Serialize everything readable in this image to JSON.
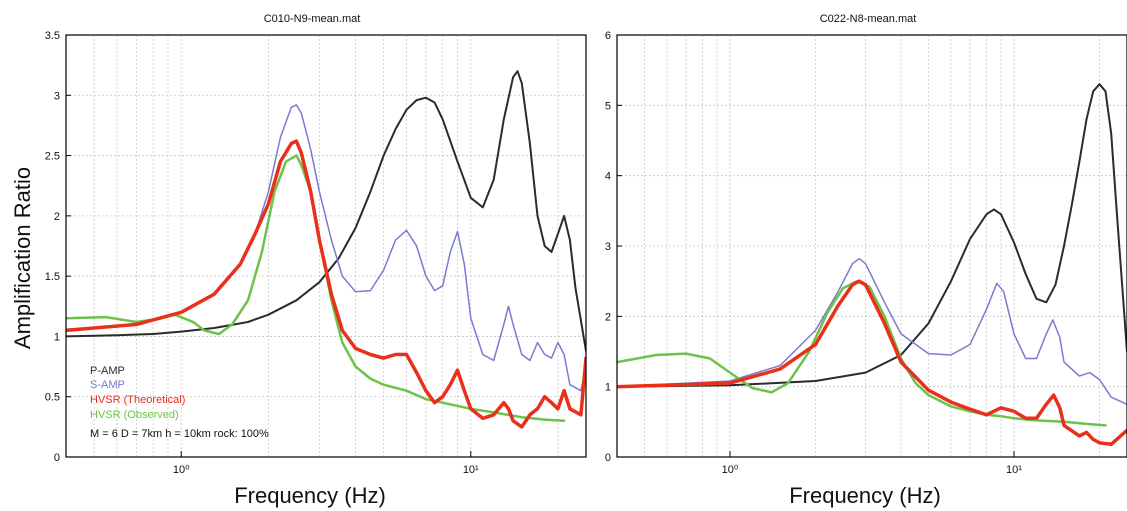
{
  "ylabel": "Amplification Ratio",
  "colors": {
    "P-AMP": "#2b2b2b",
    "S-AMP": "#7a7ad0",
    "HVSR (Theoretical)": "#e8301c",
    "HVSR (Observed)": "#6cc24a"
  },
  "chart_data": [
    {
      "type": "line",
      "title": "C010-N9-mean.mat",
      "xlabel": "Frequency (Hz)",
      "x_scale": "log",
      "xlim": [
        0.4,
        25
      ],
      "ylim": [
        0,
        3.5
      ],
      "yticks": [
        "0",
        "0.5",
        "1",
        "1.5",
        "2",
        "2.5",
        "3",
        "3.5"
      ],
      "xticks": [
        {
          "value": 1,
          "label": "10⁰"
        },
        {
          "value": 10,
          "label": "10¹"
        }
      ],
      "grid": true,
      "legend": "bottom-left",
      "annotation": "M = 6  D = 7km  h = 10km  rock: 100%",
      "series": [
        {
          "name": "P-AMP",
          "points": [
            [
              0.4,
              1.0
            ],
            [
              0.6,
              1.01
            ],
            [
              0.8,
              1.02
            ],
            [
              1.0,
              1.04
            ],
            [
              1.3,
              1.07
            ],
            [
              1.7,
              1.12
            ],
            [
              2.0,
              1.18
            ],
            [
              2.5,
              1.3
            ],
            [
              3.0,
              1.45
            ],
            [
              3.5,
              1.65
            ],
            [
              4.0,
              1.9
            ],
            [
              4.5,
              2.2
            ],
            [
              5.0,
              2.5
            ],
            [
              5.5,
              2.72
            ],
            [
              6.0,
              2.88
            ],
            [
              6.5,
              2.96
            ],
            [
              7.0,
              2.98
            ],
            [
              7.5,
              2.94
            ],
            [
              8.0,
              2.8
            ],
            [
              9.0,
              2.45
            ],
            [
              10.0,
              2.15
            ],
            [
              11.0,
              2.07
            ],
            [
              12.0,
              2.3
            ],
            [
              13.0,
              2.8
            ],
            [
              14.0,
              3.15
            ],
            [
              14.5,
              3.2
            ],
            [
              15.0,
              3.1
            ],
            [
              16.0,
              2.6
            ],
            [
              17.0,
              2.0
            ],
            [
              18.0,
              1.75
            ],
            [
              19.0,
              1.7
            ],
            [
              20.0,
              1.85
            ],
            [
              21.0,
              2.0
            ],
            [
              22.0,
              1.8
            ],
            [
              23.0,
              1.4
            ],
            [
              25.0,
              0.88
            ]
          ]
        },
        {
          "name": "S-AMP",
          "points": [
            [
              0.4,
              1.06
            ],
            [
              0.7,
              1.1
            ],
            [
              1.0,
              1.2
            ],
            [
              1.3,
              1.35
            ],
            [
              1.6,
              1.6
            ],
            [
              1.8,
              1.85
            ],
            [
              2.0,
              2.2
            ],
            [
              2.2,
              2.65
            ],
            [
              2.4,
              2.9
            ],
            [
              2.5,
              2.92
            ],
            [
              2.6,
              2.85
            ],
            [
              2.8,
              2.55
            ],
            [
              3.0,
              2.2
            ],
            [
              3.3,
              1.8
            ],
            [
              3.6,
              1.5
            ],
            [
              4.0,
              1.37
            ],
            [
              4.5,
              1.38
            ],
            [
              5.0,
              1.55
            ],
            [
              5.5,
              1.8
            ],
            [
              6.0,
              1.88
            ],
            [
              6.5,
              1.75
            ],
            [
              7.0,
              1.5
            ],
            [
              7.5,
              1.38
            ],
            [
              8.0,
              1.42
            ],
            [
              8.5,
              1.7
            ],
            [
              9.0,
              1.87
            ],
            [
              9.5,
              1.6
            ],
            [
              10.0,
              1.15
            ],
            [
              11.0,
              0.85
            ],
            [
              12.0,
              0.8
            ],
            [
              13.0,
              1.1
            ],
            [
              13.5,
              1.25
            ],
            [
              14.0,
              1.1
            ],
            [
              15.0,
              0.85
            ],
            [
              16.0,
              0.8
            ],
            [
              17.0,
              0.95
            ],
            [
              18.0,
              0.85
            ],
            [
              19.0,
              0.82
            ],
            [
              20.0,
              0.95
            ],
            [
              21.0,
              0.85
            ],
            [
              22.0,
              0.6
            ],
            [
              24.0,
              0.55
            ],
            [
              25.0,
              0.75
            ]
          ]
        },
        {
          "name": "HVSR (Theoretical)",
          "points": [
            [
              0.4,
              1.05
            ],
            [
              0.7,
              1.1
            ],
            [
              1.0,
              1.2
            ],
            [
              1.3,
              1.35
            ],
            [
              1.6,
              1.6
            ],
            [
              1.8,
              1.85
            ],
            [
              2.0,
              2.1
            ],
            [
              2.2,
              2.45
            ],
            [
              2.4,
              2.6
            ],
            [
              2.5,
              2.62
            ],
            [
              2.6,
              2.52
            ],
            [
              2.8,
              2.2
            ],
            [
              3.0,
              1.8
            ],
            [
              3.3,
              1.35
            ],
            [
              3.6,
              1.05
            ],
            [
              4.0,
              0.9
            ],
            [
              4.5,
              0.85
            ],
            [
              5.0,
              0.82
            ],
            [
              5.5,
              0.85
            ],
            [
              6.0,
              0.85
            ],
            [
              6.5,
              0.7
            ],
            [
              7.0,
              0.55
            ],
            [
              7.5,
              0.45
            ],
            [
              8.0,
              0.5
            ],
            [
              8.5,
              0.6
            ],
            [
              9.0,
              0.72
            ],
            [
              9.5,
              0.55
            ],
            [
              10.0,
              0.4
            ],
            [
              11.0,
              0.32
            ],
            [
              12.0,
              0.35
            ],
            [
              13.0,
              0.45
            ],
            [
              13.5,
              0.4
            ],
            [
              14.0,
              0.3
            ],
            [
              15.0,
              0.25
            ],
            [
              16.0,
              0.35
            ],
            [
              17.0,
              0.4
            ],
            [
              18.0,
              0.5
            ],
            [
              19.0,
              0.45
            ],
            [
              20.0,
              0.4
            ],
            [
              21.0,
              0.55
            ],
            [
              22.0,
              0.4
            ],
            [
              24.0,
              0.35
            ],
            [
              25.0,
              0.82
            ]
          ]
        },
        {
          "name": "HVSR (Observed)",
          "points": [
            [
              0.4,
              1.15
            ],
            [
              0.55,
              1.16
            ],
            [
              0.7,
              1.12
            ],
            [
              0.85,
              1.15
            ],
            [
              0.95,
              1.18
            ],
            [
              1.1,
              1.12
            ],
            [
              1.2,
              1.05
            ],
            [
              1.35,
              1.02
            ],
            [
              1.5,
              1.1
            ],
            [
              1.7,
              1.3
            ],
            [
              1.9,
              1.7
            ],
            [
              2.1,
              2.2
            ],
            [
              2.3,
              2.45
            ],
            [
              2.5,
              2.5
            ],
            [
              2.6,
              2.42
            ],
            [
              2.8,
              2.2
            ],
            [
              3.0,
              1.8
            ],
            [
              3.3,
              1.3
            ],
            [
              3.6,
              0.95
            ],
            [
              4.0,
              0.75
            ],
            [
              4.5,
              0.65
            ],
            [
              5.0,
              0.6
            ],
            [
              6.0,
              0.55
            ],
            [
              7.0,
              0.48
            ],
            [
              8.0,
              0.45
            ],
            [
              10.0,
              0.4
            ],
            [
              12.0,
              0.37
            ],
            [
              15.0,
              0.33
            ],
            [
              18.0,
              0.31
            ],
            [
              21.0,
              0.3
            ]
          ]
        }
      ]
    },
    {
      "type": "line",
      "title": "C022-N8-mean.mat",
      "xlabel": "Frequency (Hz)",
      "x_scale": "log",
      "xlim": [
        0.4,
        25
      ],
      "ylim": [
        0,
        6
      ],
      "yticks": [
        "0",
        "1",
        "2",
        "3",
        "4",
        "5",
        "6"
      ],
      "xticks": [
        {
          "value": 1,
          "label": "10⁰"
        },
        {
          "value": 10,
          "label": "10¹"
        }
      ],
      "grid": true,
      "series": [
        {
          "name": "P-AMP",
          "points": [
            [
              0.4,
              1.0
            ],
            [
              1.0,
              1.02
            ],
            [
              2.0,
              1.08
            ],
            [
              3.0,
              1.2
            ],
            [
              4.0,
              1.45
            ],
            [
              5.0,
              1.9
            ],
            [
              6.0,
              2.5
            ],
            [
              7.0,
              3.1
            ],
            [
              8.0,
              3.45
            ],
            [
              8.5,
              3.52
            ],
            [
              9.0,
              3.45
            ],
            [
              10.0,
              3.05
            ],
            [
              11.0,
              2.6
            ],
            [
              12.0,
              2.25
            ],
            [
              13.0,
              2.2
            ],
            [
              14.0,
              2.45
            ],
            [
              15.0,
              3.0
            ],
            [
              16.0,
              3.6
            ],
            [
              17.0,
              4.2
            ],
            [
              18.0,
              4.8
            ],
            [
              19.0,
              5.2
            ],
            [
              20.0,
              5.3
            ],
            [
              21.0,
              5.2
            ],
            [
              22.0,
              4.6
            ],
            [
              23.0,
              3.5
            ],
            [
              25.0,
              1.5
            ]
          ]
        },
        {
          "name": "S-AMP",
          "points": [
            [
              0.4,
              1.0
            ],
            [
              1.0,
              1.08
            ],
            [
              1.5,
              1.3
            ],
            [
              2.0,
              1.8
            ],
            [
              2.4,
              2.35
            ],
            [
              2.7,
              2.75
            ],
            [
              2.85,
              2.82
            ],
            [
              3.0,
              2.75
            ],
            [
              3.5,
              2.2
            ],
            [
              4.0,
              1.75
            ],
            [
              5.0,
              1.47
            ],
            [
              6.0,
              1.45
            ],
            [
              7.0,
              1.6
            ],
            [
              8.0,
              2.1
            ],
            [
              8.7,
              2.47
            ],
            [
              9.2,
              2.35
            ],
            [
              10.0,
              1.75
            ],
            [
              11.0,
              1.4
            ],
            [
              12.0,
              1.4
            ],
            [
              13.0,
              1.75
            ],
            [
              13.7,
              1.95
            ],
            [
              14.5,
              1.7
            ],
            [
              15.0,
              1.35
            ],
            [
              17.0,
              1.15
            ],
            [
              18.5,
              1.2
            ],
            [
              20.0,
              1.1
            ],
            [
              22.0,
              0.85
            ],
            [
              25.0,
              0.75
            ]
          ]
        },
        {
          "name": "HVSR (Theoretical)",
          "points": [
            [
              0.4,
              1.0
            ],
            [
              1.0,
              1.05
            ],
            [
              1.5,
              1.25
            ],
            [
              2.0,
              1.6
            ],
            [
              2.4,
              2.15
            ],
            [
              2.7,
              2.45
            ],
            [
              2.85,
              2.5
            ],
            [
              3.0,
              2.45
            ],
            [
              3.5,
              1.9
            ],
            [
              4.0,
              1.35
            ],
            [
              5.0,
              0.95
            ],
            [
              6.0,
              0.78
            ],
            [
              7.0,
              0.68
            ],
            [
              8.0,
              0.6
            ],
            [
              9.0,
              0.7
            ],
            [
              10.0,
              0.65
            ],
            [
              11.0,
              0.55
            ],
            [
              12.0,
              0.55
            ],
            [
              13.0,
              0.75
            ],
            [
              13.8,
              0.88
            ],
            [
              14.5,
              0.7
            ],
            [
              15.0,
              0.45
            ],
            [
              17.0,
              0.3
            ],
            [
              18.0,
              0.35
            ],
            [
              19.0,
              0.25
            ],
            [
              20.0,
              0.2
            ],
            [
              22.0,
              0.18
            ],
            [
              23.0,
              0.25
            ],
            [
              25.0,
              0.38
            ]
          ]
        },
        {
          "name": "HVSR (Observed)",
          "points": [
            [
              0.4,
              1.35
            ],
            [
              0.55,
              1.45
            ],
            [
              0.7,
              1.47
            ],
            [
              0.85,
              1.4
            ],
            [
              1.0,
              1.2
            ],
            [
              1.2,
              0.98
            ],
            [
              1.4,
              0.92
            ],
            [
              1.6,
              1.05
            ],
            [
              1.9,
              1.5
            ],
            [
              2.2,
              2.05
            ],
            [
              2.5,
              2.4
            ],
            [
              2.8,
              2.5
            ],
            [
              3.1,
              2.42
            ],
            [
              3.5,
              2.0
            ],
            [
              4.0,
              1.4
            ],
            [
              4.5,
              1.05
            ],
            [
              5.0,
              0.88
            ],
            [
              6.0,
              0.72
            ],
            [
              7.0,
              0.65
            ],
            [
              8.0,
              0.6
            ],
            [
              9.0,
              0.58
            ],
            [
              10.0,
              0.55
            ],
            [
              12.0,
              0.52
            ],
            [
              15.0,
              0.5
            ],
            [
              18.0,
              0.47
            ],
            [
              21.0,
              0.45
            ]
          ]
        }
      ]
    }
  ]
}
